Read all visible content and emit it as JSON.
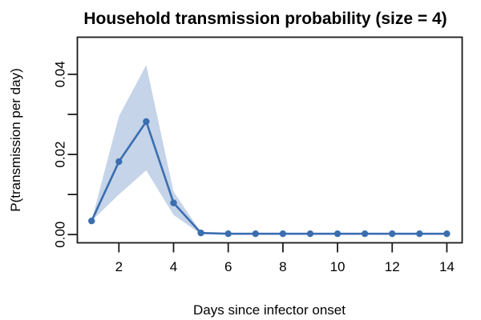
{
  "chart_data": {
    "type": "line",
    "title": "Household transmission probability (size = 4)",
    "xlabel": "Days since infector onset",
    "ylabel": "P(transmission per day)",
    "x": [
      1,
      2,
      3,
      4,
      5,
      6,
      7,
      8,
      9,
      10,
      11,
      12,
      13,
      14
    ],
    "series": [
      {
        "name": "mean",
        "values": [
          0.0034,
          0.0182,
          0.0282,
          0.0079,
          0.0004,
          0.0002,
          0.0002,
          0.0002,
          0.0002,
          0.0002,
          0.0002,
          0.0002,
          0.0002,
          0.0002
        ]
      },
      {
        "name": "band_lower",
        "values": [
          0.0034,
          0.01,
          0.016,
          0.0049,
          0.0001,
          0.0002,
          0.0002,
          0.0002,
          0.0002,
          0.0002,
          0.0002,
          0.0002,
          0.0002,
          0.0002
        ]
      },
      {
        "name": "band_upper",
        "values": [
          0.0034,
          0.0295,
          0.0423,
          0.0107,
          0.0006,
          0.0002,
          0.0002,
          0.0002,
          0.0002,
          0.0002,
          0.0002,
          0.0002,
          0.0002,
          0.0002
        ]
      }
    ],
    "x_ticks": [
      2,
      4,
      6,
      8,
      10,
      12,
      14
    ],
    "y_ticks": [
      {
        "value": 0.0,
        "label": "0.00"
      },
      {
        "value": 0.01,
        "label": ""
      },
      {
        "value": 0.02,
        "label": "0.02"
      },
      {
        "value": 0.03,
        "label": ""
      },
      {
        "value": 0.04,
        "label": "0.04"
      }
    ],
    "x_range": [
      0.48,
      14.56
    ],
    "y_range": [
      -0.00206,
      0.04926
    ],
    "grid": false,
    "legend": "none",
    "colors": {
      "line": "#3B6EAF",
      "point": "#3B6EAF",
      "band": "#C5D4E8",
      "axis": "#1A1A1A",
      "background": "#FFFFFF"
    }
  }
}
